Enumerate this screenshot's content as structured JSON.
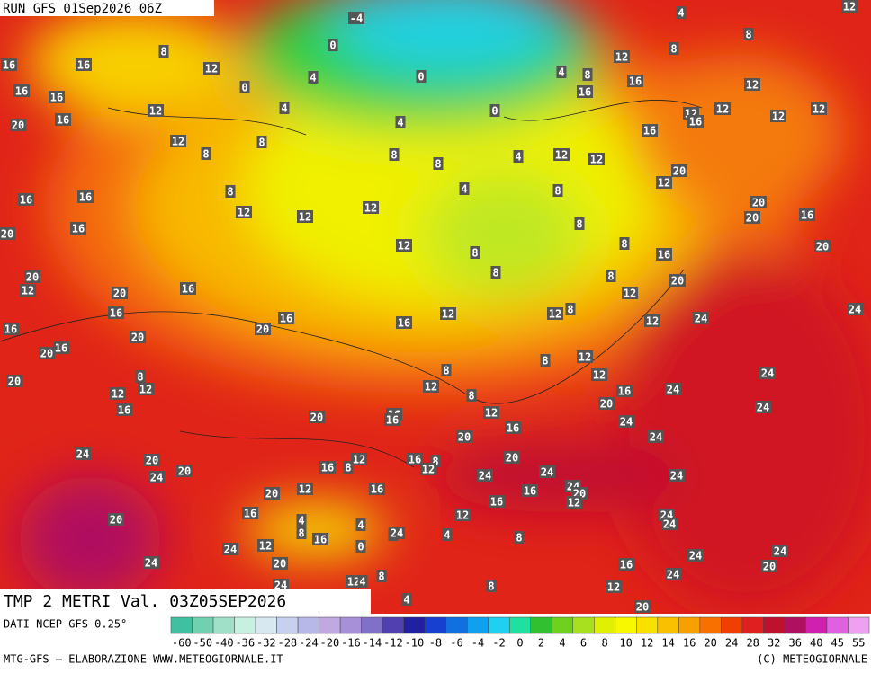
{
  "header": {
    "run": "RUN GFS 01Sep2026 06Z"
  },
  "title": "TMP 2 METRI Val. 03Z05SEP2026",
  "map_labels": [
    -4,
    0,
    8,
    12,
    16,
    16,
    4,
    0,
    0,
    16,
    16,
    4,
    12,
    16,
    20,
    12,
    8,
    4,
    0,
    4,
    8,
    16,
    12,
    8,
    16,
    8,
    12,
    12,
    4,
    12,
    12,
    16,
    12,
    12,
    16,
    8,
    8,
    8,
    4,
    12,
    12,
    20,
    12,
    4,
    8,
    8,
    16,
    16,
    12,
    12,
    12,
    8,
    20,
    20,
    16,
    16,
    20,
    12,
    8,
    8,
    20,
    16,
    8,
    20,
    12,
    8,
    16,
    20,
    12,
    20,
    16,
    16,
    12,
    16,
    12,
    8,
    12,
    24,
    24,
    20,
    20,
    16,
    16,
    20,
    12,
    8,
    8,
    8,
    12,
    24,
    20,
    12,
    12,
    12,
    8,
    16,
    24,
    16,
    20,
    24,
    12,
    16,
    16,
    20,
    16,
    24,
    20,
    24,
    24,
    20,
    16,
    8,
    12,
    20,
    16,
    8,
    12,
    24,
    24,
    20,
    24,
    24,
    12,
    24,
    20,
    16,
    16,
    20,
    16,
    12,
    16,
    12,
    20,
    24,
    24,
    4,
    4,
    8,
    8,
    24,
    4,
    8,
    16,
    24,
    12,
    0,
    24,
    24,
    24,
    20,
    16,
    20,
    24,
    8,
    12,
    4,
    24,
    8,
    12,
    4,
    20
  ],
  "colorbar": {
    "source": "DATI NCEP GFS 0.25°",
    "ticks": [
      -60,
      -50,
      -40,
      -36,
      -32,
      -28,
      -24,
      -20,
      -16,
      -14,
      -12,
      -10,
      -8,
      -6,
      -4,
      -2,
      0,
      2,
      4,
      6,
      8,
      10,
      12,
      14,
      16,
      20,
      24,
      28,
      32,
      36,
      40,
      45,
      55
    ],
    "colors": [
      "#40c0a0",
      "#70d0b0",
      "#a0e0c8",
      "#c8f0e0",
      "#d8e8f0",
      "#c8d0f0",
      "#b8b8e8",
      "#c0a8e0",
      "#a890d8",
      "#8070c8",
      "#5040b0",
      "#2020a0",
      "#1840d0",
      "#1070e0",
      "#10a0f0",
      "#20d0f0",
      "#20e0a0",
      "#30c030",
      "#70d020",
      "#a8e020",
      "#e0f000",
      "#f8f800",
      "#f8e000",
      "#f8c000",
      "#f8a000",
      "#f87000",
      "#f04000",
      "#e02020",
      "#c01030",
      "#b01060",
      "#d020b0",
      "#e060e0",
      "#f0a0f0"
    ]
  },
  "footer": {
    "left": "MTG-GFS — ELABORAZIONE WWW.METEOGIORNALE.IT",
    "right": "(C) METEOGIORNALE"
  }
}
